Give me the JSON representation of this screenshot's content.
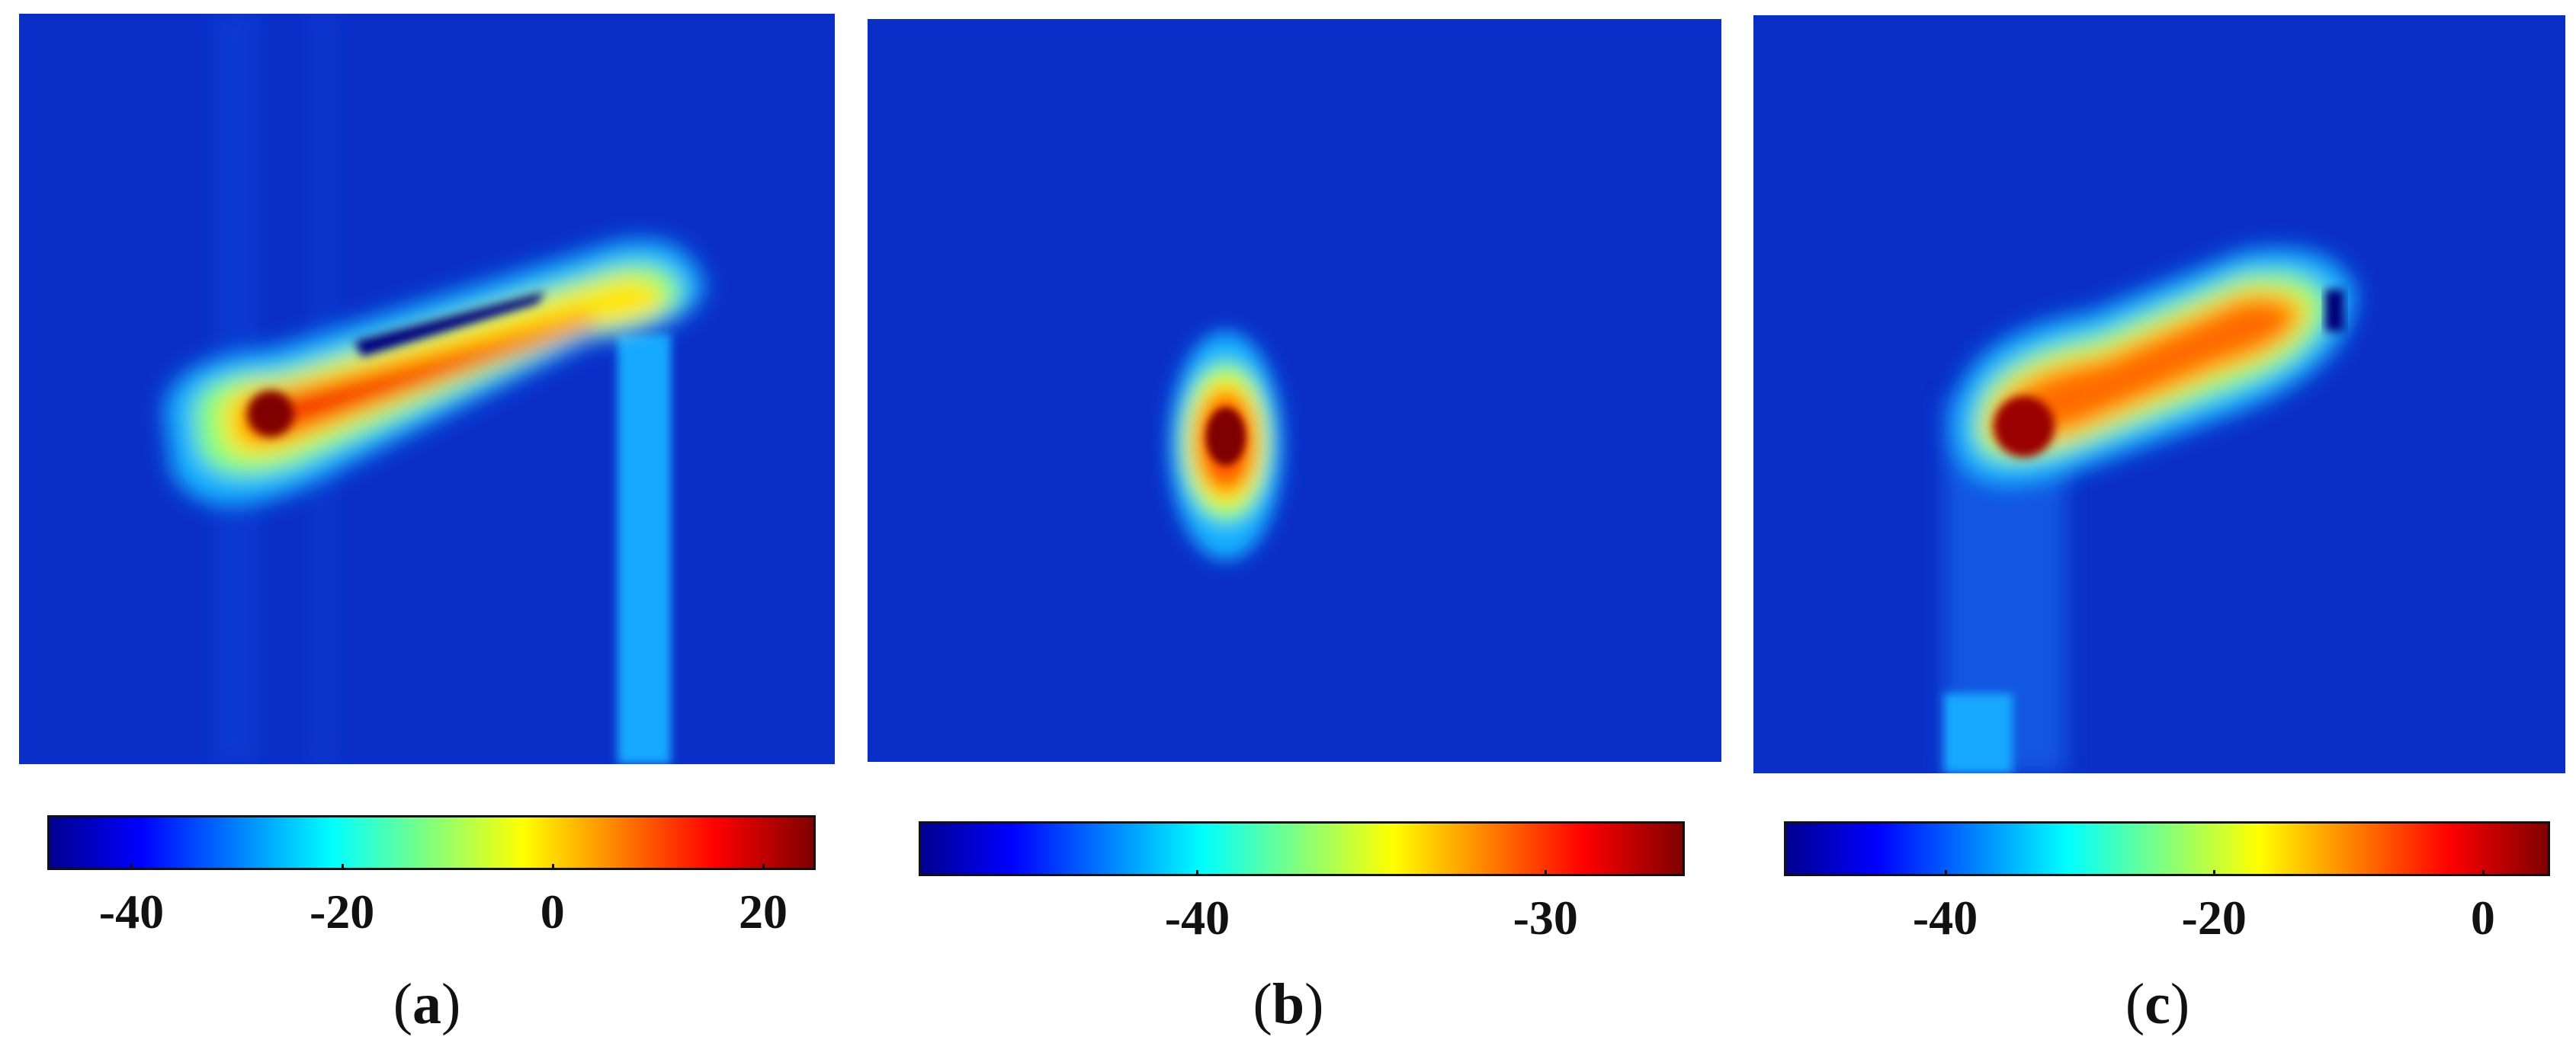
{
  "chart_data": [
    {
      "type": "heatmap",
      "panel_label": "a",
      "colormap": "jet",
      "colorbar": {
        "range": [
          -48,
          25
        ],
        "ticks": [
          -40,
          -20,
          0,
          20
        ],
        "tick_labels": [
          "-40",
          "-20",
          "0",
          "20"
        ]
      },
      "description_values": {
        "background": -45,
        "peak": 25
      }
    },
    {
      "type": "heatmap",
      "panel_label": "b",
      "colormap": "jet",
      "colorbar": {
        "range": [
          -48,
          -26
        ],
        "ticks": [
          -40,
          -30
        ],
        "tick_labels": [
          "-40",
          "-30"
        ]
      },
      "description_values": {
        "background": -46,
        "peak": -26
      }
    },
    {
      "type": "heatmap",
      "panel_label": "c",
      "colormap": "jet",
      "colorbar": {
        "range": [
          -52,
          5
        ],
        "ticks": [
          -40,
          -20,
          0
        ],
        "tick_labels": [
          "-40",
          "-20",
          "0"
        ]
      },
      "description_values": {
        "background": -48,
        "peak": 5
      }
    }
  ],
  "captions": [
    "a",
    "b",
    "c"
  ],
  "colors": {
    "background_blue": "#0a2fc8",
    "jet_dark_red": "#7f0000"
  }
}
